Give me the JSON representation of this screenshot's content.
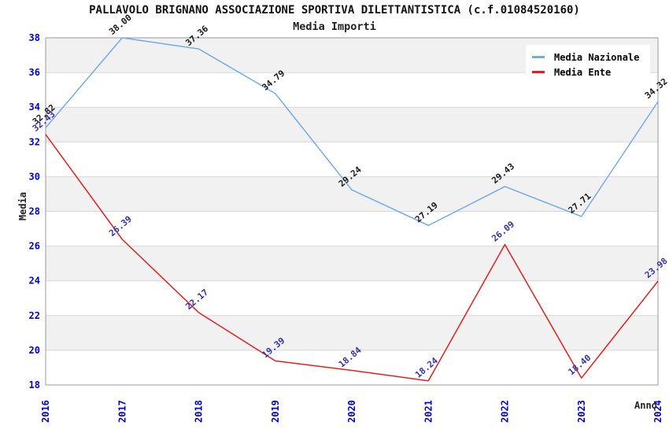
{
  "title": "PALLAVOLO BRIGNANO ASSOCIAZIONE SPORTIVA DILETTANTISTICA (c.f.01084520160)",
  "subtitle": "Media Importi",
  "legend": {
    "position": "top-right",
    "items": [
      {
        "label": "Media Nazionale",
        "color": "#74aae8"
      },
      {
        "label": "Media Ente",
        "color": "#e02020"
      }
    ]
  },
  "axes": {
    "y_title": "Media",
    "x_title": "Anno",
    "tick_color": "#0000cc",
    "grid_color": "#d8d8d8",
    "border_color": "#999999",
    "band_color": "#f1f1f1"
  },
  "chart_data": {
    "type": "line",
    "title": "Media Importi",
    "xlabel": "Anno",
    "ylabel": "Media",
    "categories": [
      "2016",
      "2017",
      "2018",
      "2019",
      "2020",
      "2021",
      "2022",
      "2023",
      "2024"
    ],
    "series": [
      {
        "name": "Media Nazionale",
        "color": "#74aae8",
        "label_color": "#1a1a1a",
        "values": [
          32.82,
          38.0,
          37.36,
          34.79,
          29.24,
          27.19,
          29.43,
          27.71,
          34.32
        ]
      },
      {
        "name": "Media Ente",
        "color": "#e02020",
        "label_color": "#3333aa",
        "values": [
          32.43,
          26.39,
          22.17,
          19.39,
          18.84,
          18.24,
          26.09,
          18.4,
          23.98
        ]
      }
    ],
    "ylim": [
      18,
      38
    ],
    "y_ticks": [
      18,
      20,
      22,
      24,
      26,
      28,
      30,
      32,
      34,
      36,
      38
    ],
    "grid": true,
    "banded_background": true,
    "legend_position": "top-right"
  }
}
